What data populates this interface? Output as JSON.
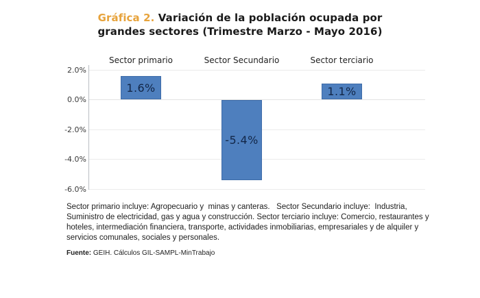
{
  "title": {
    "prefix": "Gráfica 2.",
    "line1_rest": " Variación de la población ocupada por",
    "line2": "grandes sectores (Trimestre Marzo - Mayo 2016)"
  },
  "chart_data": {
    "type": "bar",
    "categories": [
      "Sector primario",
      "Sector Secundario",
      "Sector terciario"
    ],
    "values": [
      1.6,
      -5.4,
      1.1
    ],
    "data_labels": [
      "1.6%",
      "-5.4%",
      "1.1%"
    ],
    "title": "Variación de la población ocupada por grandes sectores (Trimestre Marzo - Mayo 2016)",
    "xlabel": "",
    "ylabel": "",
    "ylim": [
      -6.0,
      2.0
    ],
    "ytick_labels": [
      "2.0%",
      "0.0%",
      "-2.0%",
      "-4.0%",
      "-6.0%"
    ],
    "ytick_values": [
      2.0,
      0.0,
      -2.0,
      -4.0,
      -6.0
    ],
    "grid": true,
    "legend": false,
    "bar_color": "#4e7fbe",
    "bar_border_color": "#3d6ba8",
    "label_color": "#122647"
  },
  "footnote": {
    "lines": [
      "Sector primario incluye: Agropecuario y  minas y canteras.   Sector Secundario incluye:  Industria,",
      "Suministro de electricidad, gas y agua y construcción. Sector terciario incluye: Comercio, restaurantes y",
      "hoteles, intermediación financiera, transporte, actividades inmobiliarias, empresariales y de alquiler y",
      "servicios comunales, sociales y personales."
    ]
  },
  "source": {
    "label": "Fuente:",
    "text": " GEIH. Cálculos GIL-SAMPL-MinTrabajo"
  },
  "colors": {
    "accent": "#e7a33c",
    "bar": "#4e7fbe"
  }
}
